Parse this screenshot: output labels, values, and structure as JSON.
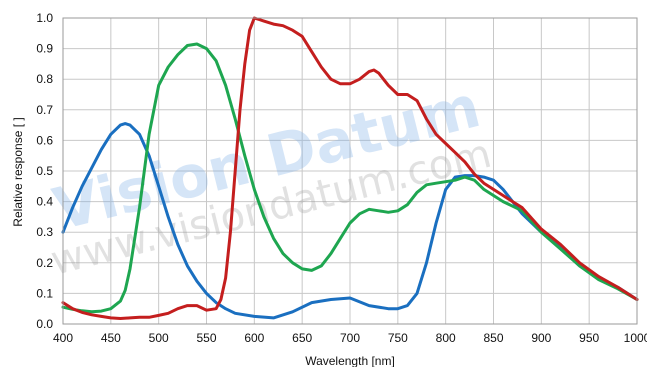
{
  "chart_data": {
    "type": "line",
    "title": "",
    "xlabel": "Wavelength [nm]",
    "ylabel": "Relative response [ ]",
    "xlim": [
      400,
      1000
    ],
    "ylim": [
      0,
      1.0
    ],
    "xticks": [
      400,
      450,
      500,
      550,
      600,
      650,
      700,
      750,
      800,
      850,
      900,
      950,
      1000
    ],
    "xtick_labels": [
      "400",
      "450",
      "500",
      "550",
      "600",
      "650",
      "700",
      "750",
      "800",
      "850",
      "900",
      "950",
      "1000"
    ],
    "yticks": [
      0,
      0.1,
      0.2,
      0.3,
      0.4,
      0.5,
      0.6,
      0.7,
      0.8,
      0.9,
      1.0
    ],
    "ytick_labels": [
      "0.0",
      "0.1",
      "0.2",
      "0.3",
      "0.4",
      "0.5",
      "0.6",
      "0.7",
      "0.8",
      "0.9",
      "1.0"
    ],
    "grid": true,
    "legend": "none",
    "series": [
      {
        "color": "#1a6fc0",
        "x": [
          400,
          410,
          420,
          430,
          440,
          450,
          460,
          465,
          470,
          480,
          490,
          500,
          510,
          520,
          530,
          540,
          550,
          560,
          570,
          580,
          600,
          620,
          640,
          660,
          680,
          700,
          720,
          740,
          750,
          760,
          770,
          780,
          790,
          800,
          810,
          820,
          830,
          840,
          850,
          860,
          870,
          880,
          900,
          920,
          940,
          960,
          980,
          1000
        ],
        "y": [
          0.3,
          0.38,
          0.45,
          0.51,
          0.57,
          0.62,
          0.65,
          0.655,
          0.65,
          0.62,
          0.55,
          0.45,
          0.35,
          0.26,
          0.19,
          0.14,
          0.1,
          0.07,
          0.05,
          0.035,
          0.025,
          0.02,
          0.04,
          0.07,
          0.08,
          0.085,
          0.06,
          0.05,
          0.05,
          0.06,
          0.1,
          0.2,
          0.33,
          0.44,
          0.48,
          0.485,
          0.485,
          0.48,
          0.47,
          0.44,
          0.4,
          0.36,
          0.3,
          0.25,
          0.19,
          0.15,
          0.12,
          0.08
        ]
      },
      {
        "color": "#1ea650",
        "x": [
          400,
          410,
          420,
          430,
          440,
          450,
          460,
          465,
          470,
          480,
          490,
          500,
          510,
          520,
          530,
          540,
          550,
          560,
          570,
          580,
          590,
          600,
          610,
          620,
          630,
          640,
          650,
          660,
          670,
          680,
          690,
          700,
          710,
          720,
          730,
          740,
          750,
          760,
          770,
          780,
          790,
          800,
          810,
          820,
          830,
          840,
          850,
          860,
          870,
          880,
          900,
          920,
          940,
          960,
          980,
          1000
        ],
        "y": [
          0.055,
          0.048,
          0.043,
          0.04,
          0.042,
          0.05,
          0.075,
          0.11,
          0.18,
          0.38,
          0.62,
          0.78,
          0.84,
          0.88,
          0.91,
          0.915,
          0.9,
          0.86,
          0.78,
          0.67,
          0.55,
          0.44,
          0.35,
          0.28,
          0.23,
          0.2,
          0.18,
          0.175,
          0.19,
          0.23,
          0.28,
          0.33,
          0.36,
          0.375,
          0.37,
          0.365,
          0.37,
          0.39,
          0.43,
          0.455,
          0.46,
          0.465,
          0.47,
          0.48,
          0.47,
          0.44,
          0.42,
          0.4,
          0.385,
          0.37,
          0.3,
          0.245,
          0.19,
          0.145,
          0.115,
          0.08
        ]
      },
      {
        "color": "#c41e1e",
        "x": [
          400,
          410,
          420,
          430,
          440,
          450,
          460,
          470,
          480,
          490,
          500,
          510,
          520,
          530,
          540,
          550,
          560,
          565,
          570,
          575,
          580,
          585,
          590,
          595,
          600,
          605,
          610,
          620,
          630,
          640,
          650,
          660,
          670,
          680,
          690,
          700,
          710,
          720,
          725,
          730,
          740,
          750,
          760,
          770,
          780,
          790,
          800,
          810,
          820,
          830,
          840,
          850,
          860,
          870,
          880,
          900,
          920,
          940,
          960,
          980,
          1000
        ],
        "y": [
          0.07,
          0.05,
          0.038,
          0.03,
          0.025,
          0.02,
          0.018,
          0.02,
          0.022,
          0.022,
          0.028,
          0.035,
          0.05,
          0.06,
          0.06,
          0.045,
          0.05,
          0.08,
          0.15,
          0.3,
          0.5,
          0.7,
          0.85,
          0.96,
          1.0,
          0.995,
          0.99,
          0.98,
          0.975,
          0.96,
          0.94,
          0.89,
          0.84,
          0.8,
          0.785,
          0.785,
          0.8,
          0.825,
          0.83,
          0.82,
          0.78,
          0.75,
          0.75,
          0.73,
          0.67,
          0.62,
          0.59,
          0.56,
          0.53,
          0.49,
          0.46,
          0.44,
          0.42,
          0.4,
          0.38,
          0.31,
          0.26,
          0.2,
          0.155,
          0.12,
          0.08
        ]
      }
    ]
  },
  "watermark": {
    "brand": "Vision Datum",
    "url": "www.visiondatum.com"
  }
}
